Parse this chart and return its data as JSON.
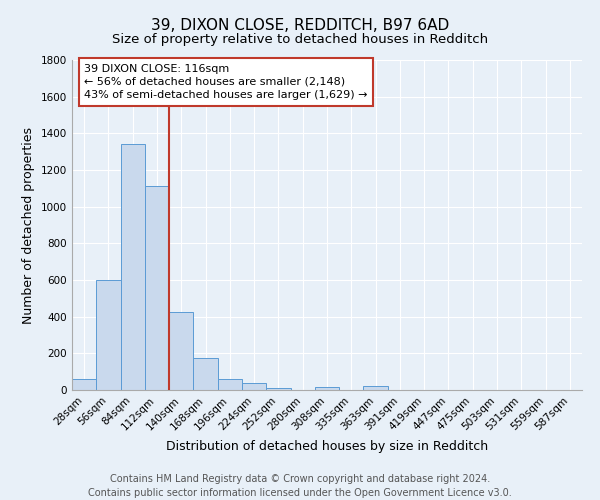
{
  "title": "39, DIXON CLOSE, REDDITCH, B97 6AD",
  "subtitle": "Size of property relative to detached houses in Redditch",
  "xlabel": "Distribution of detached houses by size in Redditch",
  "ylabel": "Number of detached properties",
  "bar_labels": [
    "28sqm",
    "56sqm",
    "84sqm",
    "112sqm",
    "140sqm",
    "168sqm",
    "196sqm",
    "224sqm",
    "252sqm",
    "280sqm",
    "308sqm",
    "335sqm",
    "363sqm",
    "391sqm",
    "419sqm",
    "447sqm",
    "475sqm",
    "503sqm",
    "531sqm",
    "559sqm",
    "587sqm"
  ],
  "bar_values": [
    58,
    600,
    1340,
    1115,
    425,
    172,
    60,
    38,
    12,
    0,
    18,
    0,
    22,
    0,
    0,
    0,
    0,
    0,
    0,
    0,
    0
  ],
  "bar_color": "#c9d9ed",
  "bar_edge_color": "#5b9bd5",
  "vline_x": 3.5,
  "vline_color": "#c0392b",
  "ylim": [
    0,
    1800
  ],
  "yticks": [
    0,
    200,
    400,
    600,
    800,
    1000,
    1200,
    1400,
    1600,
    1800
  ],
  "annotation_text": "39 DIXON CLOSE: 116sqm\n← 56% of detached houses are smaller (2,148)\n43% of semi-detached houses are larger (1,629) →",
  "annotation_box_color": "#ffffff",
  "annotation_box_edge": "#c0392b",
  "footer_line1": "Contains HM Land Registry data © Crown copyright and database right 2024.",
  "footer_line2": "Contains public sector information licensed under the Open Government Licence v3.0.",
  "bg_color": "#e8f0f8",
  "plot_bg_color": "#e8f0f8",
  "title_fontsize": 11,
  "subtitle_fontsize": 9.5,
  "axis_label_fontsize": 9,
  "tick_fontsize": 7.5,
  "annotation_fontsize": 8,
  "footer_fontsize": 7
}
